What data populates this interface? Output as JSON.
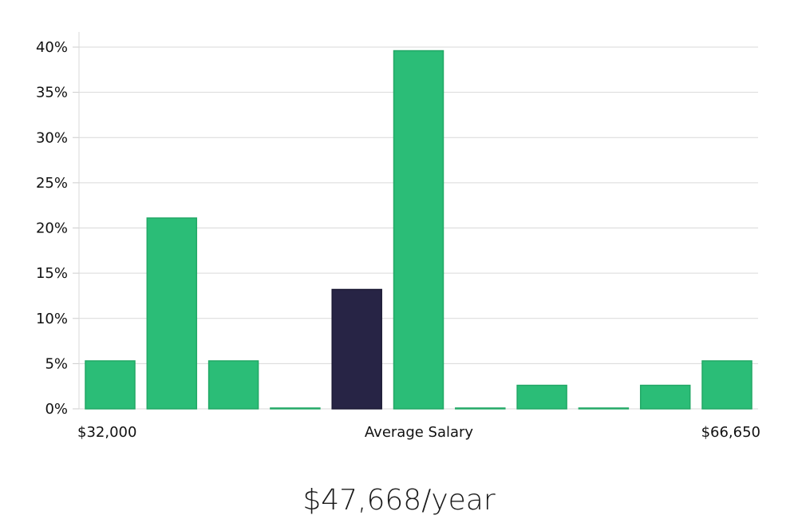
{
  "chart_data": {
    "type": "bar",
    "title": "",
    "xlabel": "Average Salary",
    "ylabel": "",
    "x_min_label": "$32,000",
    "x_max_label": "$66,650",
    "ylim": [
      0,
      40
    ],
    "yticks": [
      0,
      5,
      10,
      15,
      20,
      25,
      30,
      35,
      40
    ],
    "ytick_labels": [
      "0%",
      "5%",
      "10%",
      "15%",
      "20%",
      "25%",
      "30%",
      "35%",
      "40%"
    ],
    "values": [
      5.3,
      21.1,
      5.3,
      0.0,
      13.2,
      39.6,
      0.0,
      2.6,
      0.0,
      2.6,
      5.3
    ],
    "highlight_index": 4,
    "colors": {
      "bar": "#2bbd77",
      "bar_border": "#22a866",
      "highlight": "#272445",
      "grid": "#d9d9d9"
    }
  },
  "salary_summary": "$47,668/year"
}
